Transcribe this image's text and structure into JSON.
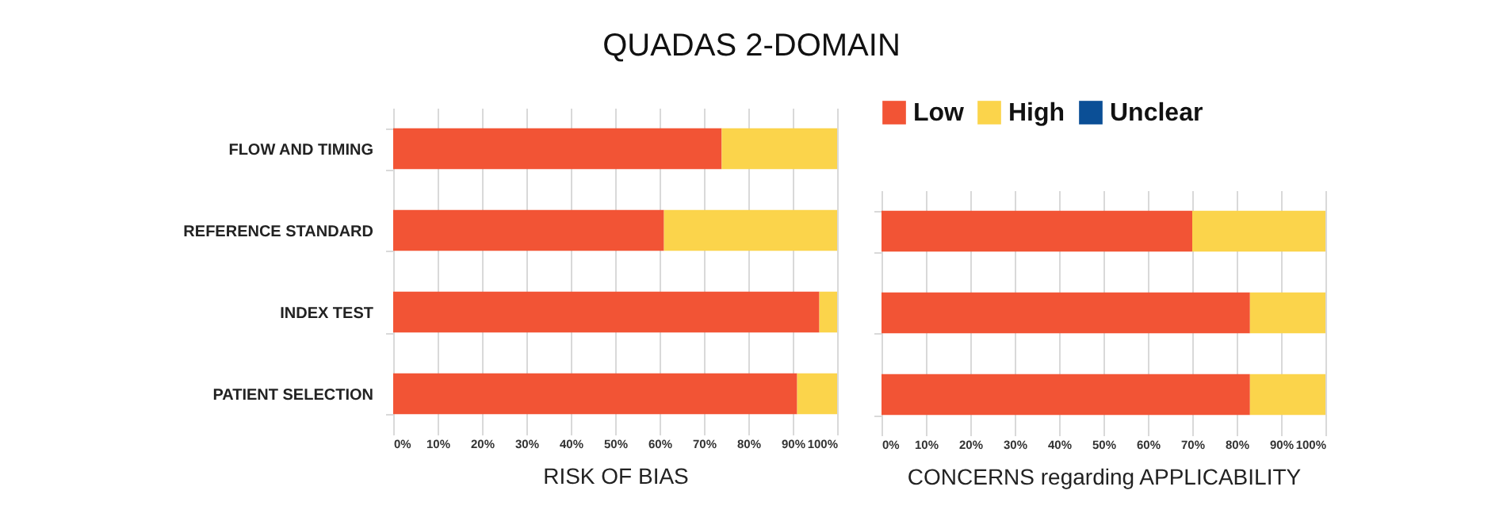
{
  "chart_data": [
    {
      "type": "bar",
      "title": "QUADAS 2-DOMAIN",
      "xlabel": "RISK OF BIAS",
      "orientation": "horizontal",
      "stacked": true,
      "categories": [
        "FLOW AND TIMING",
        "REFERENCE STANDARD",
        "INDEX TEST",
        "PATIENT SELECTION"
      ],
      "series": [
        {
          "color": "#f25435",
          "values": [
            74,
            61,
            96,
            91
          ]
        },
        {
          "color": "#fbd44b",
          "values": [
            26,
            39,
            4,
            9
          ]
        }
      ],
      "xlim": [
        0,
        100
      ],
      "xticks": [
        {
          "value": 0,
          "label": "0%"
        },
        {
          "value": 10,
          "label": "10%"
        },
        {
          "value": 20,
          "label": "20%"
        },
        {
          "value": 30,
          "label": "30%"
        },
        {
          "value": 40,
          "label": "40%"
        },
        {
          "value": 50,
          "label": "50%"
        },
        {
          "value": 60,
          "label": "60%"
        },
        {
          "value": 70,
          "label": "70%"
        },
        {
          "value": 80,
          "label": "80%"
        },
        {
          "value": 90,
          "label": "90%"
        },
        {
          "value": 100,
          "label": "100%"
        }
      ],
      "grid": "x"
    },
    {
      "type": "bar",
      "xlabel": "CONCERNS regarding APPLICABILITY",
      "orientation": "horizontal",
      "stacked": true,
      "categories": [
        null,
        null,
        null
      ],
      "series": [
        {
          "name": "Low",
          "color": "#f25435",
          "values": [
            70,
            83,
            83
          ]
        },
        {
          "name": "High",
          "color": "#fbd44b",
          "values": [
            30,
            17,
            17
          ]
        },
        {
          "name": "Unclear",
          "color": "#0b4f96",
          "values": [
            0,
            0,
            0
          ]
        }
      ],
      "xlim": [
        0,
        100
      ],
      "xticks": [
        {
          "value": 0,
          "label": "0%"
        },
        {
          "value": 10,
          "label": "10%"
        },
        {
          "value": 20,
          "label": "20%"
        },
        {
          "value": 30,
          "label": "30%"
        },
        {
          "value": 40,
          "label": "40%"
        },
        {
          "value": 50,
          "label": "50%"
        },
        {
          "value": 60,
          "label": "60%"
        },
        {
          "value": 70,
          "label": "70%"
        },
        {
          "value": 80,
          "label": "80%"
        },
        {
          "value": 90,
          "label": "90%"
        },
        {
          "value": 100,
          "label": "100%"
        }
      ],
      "grid": "x",
      "legend": "top left",
      "tick_labels": "x"
    }
  ]
}
